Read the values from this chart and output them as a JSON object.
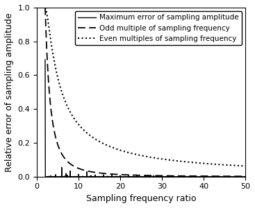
{
  "title": "",
  "xlabel": "Sampling frequency ratio",
  "ylabel": "Relative error of sampling amplitude",
  "xlim": [
    0,
    50
  ],
  "ylim": [
    0.0,
    1.0
  ],
  "xticks": [
    0,
    10,
    20,
    30,
    40,
    50
  ],
  "yticks": [
    0.0,
    0.2,
    0.4,
    0.6,
    0.8,
    1.0
  ],
  "legend_labels": [
    "Maximum error of sampling amplitude",
    "Odd multiple of sampling frequency",
    "Even multiples of sampling frequency"
  ],
  "legend_loc": "upper right",
  "background_color": "#ffffff",
  "xlabel_fontsize": 9,
  "ylabel_fontsize": 9,
  "legend_fontsize": 7.5,
  "tick_fontsize": 8
}
